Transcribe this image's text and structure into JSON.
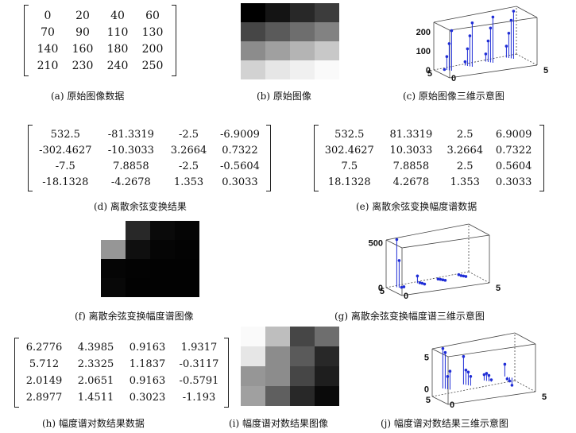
{
  "panels": {
    "a": {
      "caption": "(a) 原始图像数据",
      "rows": [
        [
          "0",
          "20",
          "40",
          "60"
        ],
        [
          "70",
          "90",
          "110",
          "130"
        ],
        [
          "140",
          "160",
          "180",
          "200"
        ],
        [
          "210",
          "230",
          "240",
          "250"
        ]
      ]
    },
    "b": {
      "caption": "(b) 原始图像",
      "grays": [
        [
          0,
          20,
          40,
          60
        ],
        [
          70,
          90,
          110,
          130
        ],
        [
          140,
          160,
          180,
          200
        ],
        [
          210,
          230,
          240,
          250
        ]
      ]
    },
    "c": {
      "caption": "(c) 原始图像三维示意图",
      "z_ticks": [
        "200",
        "100",
        "0"
      ],
      "x_label_left": "5",
      "x_label_zero": "0",
      "x_label_right": "5",
      "stems": [
        [
          0.05,
          0.05,
          0
        ],
        [
          0.15,
          0.05,
          20
        ],
        [
          0.25,
          0.05,
          40
        ],
        [
          0.35,
          0.05,
          60
        ],
        [
          0.05,
          0.35,
          70
        ],
        [
          0.15,
          0.35,
          90
        ],
        [
          0.25,
          0.35,
          110
        ],
        [
          0.35,
          0.35,
          130
        ],
        [
          0.05,
          0.6,
          140
        ],
        [
          0.15,
          0.6,
          160
        ],
        [
          0.25,
          0.6,
          180
        ],
        [
          0.35,
          0.6,
          200
        ],
        [
          0.05,
          0.85,
          210
        ],
        [
          0.15,
          0.85,
          230
        ],
        [
          0.25,
          0.85,
          240
        ],
        [
          0.35,
          0.85,
          250
        ]
      ]
    },
    "d": {
      "caption": "(d) 离散余弦变换结果",
      "rows": [
        [
          "532.5",
          "-81.3319",
          "-2.5",
          "-6.9009"
        ],
        [
          "-302.4627",
          "-10.3033",
          "3.2664",
          "0.7322"
        ],
        [
          "-7.5",
          "7.8858",
          "-2.5",
          "-0.5604"
        ],
        [
          "-18.1328",
          "-4.2678",
          "1.353",
          "0.3033"
        ]
      ]
    },
    "e": {
      "caption": "(e) 离散余弦变换幅度谱数据",
      "rows": [
        [
          "532.5",
          "81.3319",
          "2.5",
          "6.9009"
        ],
        [
          "302.4627",
          "10.3033",
          "3.2664",
          "0.7322"
        ],
        [
          "7.5",
          "7.8858",
          "2.5",
          "0.5604"
        ],
        [
          "18.1328",
          "4.2678",
          "1.353",
          "0.3033"
        ]
      ]
    },
    "f": {
      "caption": "(f) 离散余弦变换幅度谱图像",
      "grays": [
        [
          255,
          40,
          10,
          5
        ],
        [
          150,
          15,
          5,
          3
        ],
        [
          5,
          3,
          2,
          2
        ],
        [
          8,
          2,
          2,
          2
        ]
      ]
    },
    "g": {
      "caption": "(g) 离散余弦变换幅度谱三维示意图",
      "z_ticks": [
        "500",
        "0"
      ],
      "x_label_left": "5",
      "x_label_zero": "0",
      "x_label_right": "5",
      "values": [
        [
          532.5,
          81.3,
          2.5,
          6.9
        ],
        [
          302.5,
          10.3,
          3.3,
          0.7
        ],
        [
          7.5,
          7.9,
          2.5,
          0.6
        ],
        [
          18.1,
          4.3,
          1.4,
          0.3
        ]
      ]
    },
    "h": {
      "caption": "(h) 幅度谱对数结果数据",
      "rows": [
        [
          "6.2776",
          "4.3985",
          "0.9163",
          "1.9317"
        ],
        [
          "5.712",
          "2.3325",
          "1.1837",
          "-0.3117"
        ],
        [
          "2.0149",
          "2.0651",
          "0.9163",
          "-0.5791"
        ],
        [
          "2.8977",
          "1.4511",
          "0.3023",
          "-1.193"
        ]
      ]
    },
    "i": {
      "caption": "(i) 幅度谱对数结果图像",
      "grays": [
        [
          250,
          190,
          70,
          110
        ],
        [
          230,
          140,
          90,
          40
        ],
        [
          150,
          140,
          70,
          30
        ],
        [
          160,
          95,
          40,
          10
        ]
      ]
    },
    "j": {
      "caption": "(j) 幅度谱对数结果三维示意图",
      "z_ticks": [
        "5",
        "0"
      ],
      "x_label_left": "5",
      "x_label_zero": "0",
      "x_label_right": "5",
      "values": [
        [
          6.28,
          4.4,
          0.92,
          1.93
        ],
        [
          5.71,
          2.33,
          1.18,
          -0.31
        ],
        [
          2.01,
          2.07,
          0.92,
          -0.58
        ],
        [
          2.9,
          1.45,
          0.3,
          -1.19
        ]
      ]
    }
  },
  "colors": {
    "stem": "#1f2dd6",
    "box": "#444444"
  }
}
